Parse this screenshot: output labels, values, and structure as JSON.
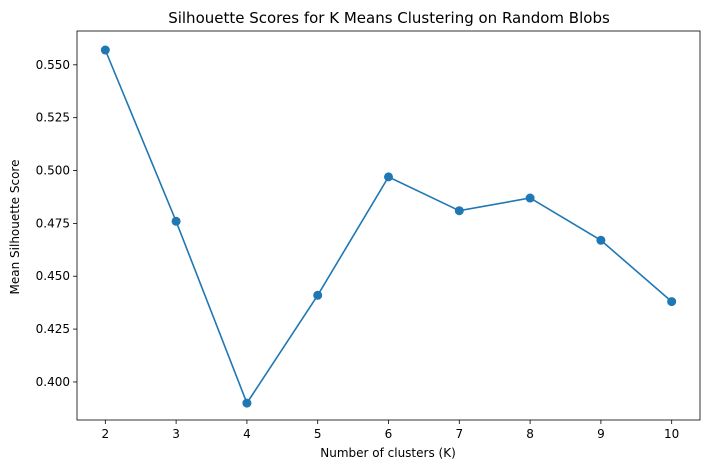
{
  "chart_data": {
    "type": "line",
    "title": "Silhouette Scores for K Means Clustering on Random Blobs",
    "xlabel": "Number of clusters (K)",
    "ylabel": "Mean Silhouette Score",
    "x": [
      2,
      3,
      4,
      5,
      6,
      7,
      8,
      9,
      10
    ],
    "series": [
      {
        "values": [
          0.557,
          0.476,
          0.39,
          0.441,
          0.497,
          0.481,
          0.487,
          0.467,
          0.438
        ]
      }
    ],
    "xticks": [
      "2",
      "3",
      "4",
      "5",
      "6",
      "7",
      "8",
      "9",
      "10"
    ],
    "yticks": [
      "0.400",
      "0.425",
      "0.450",
      "0.475",
      "0.500",
      "0.525",
      "0.550"
    ],
    "xlim": [
      1.6,
      10.4
    ],
    "ylim": [
      0.382,
      0.566
    ],
    "grid": false,
    "marker": "circle",
    "colors": {
      "line": "#1f77b4",
      "axis": "#000000"
    }
  }
}
